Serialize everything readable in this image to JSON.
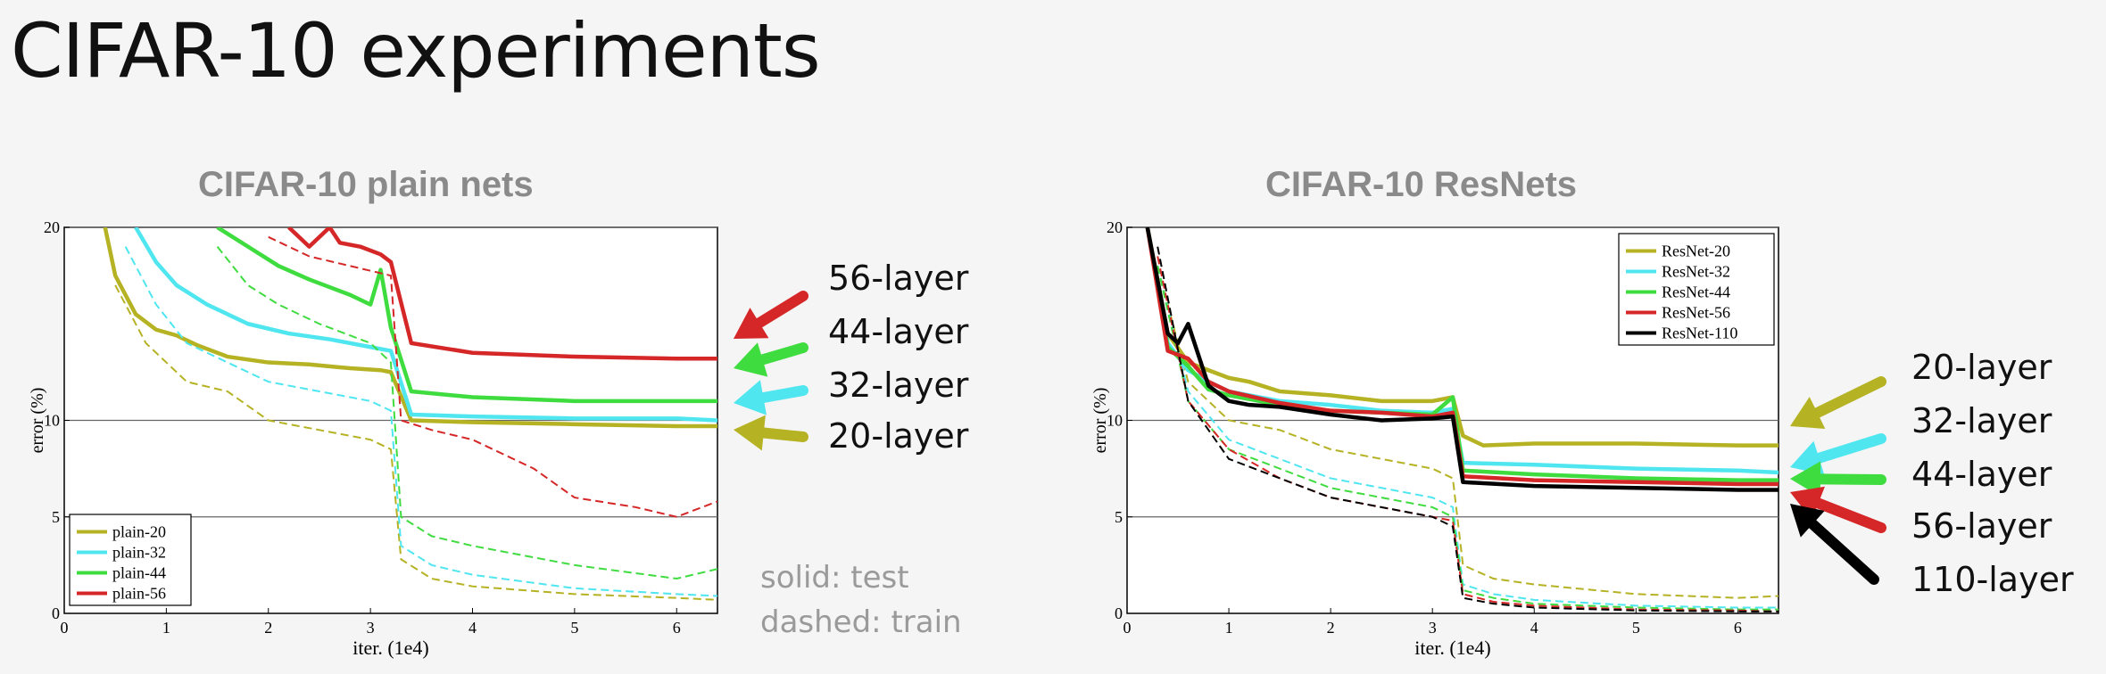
{
  "slide": {
    "title": "CIFAR-10 experiments"
  },
  "notes": {
    "solid": "solid: test",
    "dashed": "dashed: train"
  },
  "charts": {
    "plain": {
      "title": "CIFAR-10 plain nets",
      "callouts": [
        {
          "label": "56-layer",
          "color": "#d62728"
        },
        {
          "label": "44-layer",
          "color": "#3fdc3f"
        },
        {
          "label": "32-layer",
          "color": "#4fe6f0"
        },
        {
          "label": "20-layer",
          "color": "#b5b223"
        }
      ]
    },
    "resnet": {
      "title": "CIFAR-10 ResNets",
      "callouts": [
        {
          "label": "20-layer",
          "color": "#b5b223"
        },
        {
          "label": "32-layer",
          "color": "#4fe6f0"
        },
        {
          "label": "44-layer",
          "color": "#3fdc3f"
        },
        {
          "label": "56-layer",
          "color": "#d62728"
        },
        {
          "label": "110-layer",
          "color": "#000000"
        }
      ]
    }
  },
  "chart_data": [
    {
      "type": "line",
      "title": "CIFAR-10 plain nets",
      "xlabel": "iter. (1e4)",
      "ylabel": "error (%)",
      "xlim": [
        0,
        6.4
      ],
      "ylim": [
        0,
        20
      ],
      "xticks": [
        0,
        1,
        2,
        3,
        4,
        5,
        6
      ],
      "yticks": [
        0,
        5,
        10,
        20
      ],
      "grid_y": [
        5,
        10,
        20
      ],
      "legend": "bottom-left",
      "series": [
        {
          "name": "plain-20",
          "color": "#b5b223",
          "test": {
            "x": [
              0.4,
              0.5,
              0.7,
              0.9,
              1.1,
              1.3,
              1.6,
              2.0,
              2.4,
              2.8,
              3.1,
              3.2,
              3.4,
              4.0,
              5.0,
              6.0,
              6.4
            ],
            "y": [
              20,
              17.5,
              15.5,
              14.7,
              14.4,
              13.9,
              13.3,
              13.0,
              12.9,
              12.7,
              12.6,
              12.5,
              10.0,
              9.9,
              9.8,
              9.7,
              9.7
            ]
          },
          "train": {
            "x": [
              0.5,
              0.8,
              1.2,
              1.6,
              2.0,
              2.5,
              3.0,
              3.2,
              3.3,
              3.6,
              4.0,
              5.0,
              6.0,
              6.4
            ],
            "y": [
              17,
              14,
              12,
              11.5,
              10,
              9.5,
              9,
              8.5,
              2.8,
              1.8,
              1.4,
              1.0,
              0.8,
              0.7
            ]
          }
        },
        {
          "name": "plain-32",
          "color": "#4fe6f0",
          "test": {
            "x": [
              0.7,
              0.9,
              1.1,
              1.4,
              1.8,
              2.2,
              2.6,
              3.0,
              3.2,
              3.4,
              4.0,
              5.0,
              6.0,
              6.4
            ],
            "y": [
              20,
              18.2,
              17.0,
              16.0,
              15.0,
              14.5,
              14.2,
              13.8,
              13.6,
              10.3,
              10.2,
              10.1,
              10.1,
              10.0
            ]
          },
          "train": {
            "x": [
              0.6,
              0.9,
              1.2,
              1.6,
              2.0,
              2.5,
              3.0,
              3.2,
              3.3,
              3.6,
              4.0,
              5.0,
              6.0,
              6.4
            ],
            "y": [
              19,
              16,
              14,
              13,
              12,
              11.5,
              11,
              10.5,
              3.5,
              2.5,
              2.0,
              1.3,
              1.0,
              0.9
            ]
          }
        },
        {
          "name": "plain-44",
          "color": "#3fdc3f",
          "test": {
            "x": [
              1.5,
              1.8,
              2.1,
              2.4,
              2.8,
              3.0,
              3.1,
              3.2,
              3.4,
              4.0,
              5.0,
              6.0,
              6.4
            ],
            "y": [
              20,
              19.0,
              18.0,
              17.3,
              16.5,
              16.0,
              17.8,
              14.8,
              11.5,
              11.2,
              11.0,
              11.0,
              11.0
            ]
          },
          "train": {
            "x": [
              1.5,
              1.8,
              2.1,
              2.5,
              3.0,
              3.2,
              3.3,
              3.6,
              4.0,
              5.0,
              6.0,
              6.4
            ],
            "y": [
              19,
              17,
              16,
              15,
              14,
              13,
              5.0,
              4.0,
              3.5,
              2.5,
              1.8,
              2.3
            ]
          }
        },
        {
          "name": "plain-56",
          "color": "#d62728",
          "test": {
            "x": [
              2.2,
              2.4,
              2.6,
              2.7,
              2.9,
              3.1,
              3.2,
              3.4,
              4.0,
              5.0,
              6.0,
              6.4
            ],
            "y": [
              20,
              19.0,
              20,
              19.2,
              19.0,
              18.6,
              18.2,
              14.0,
              13.5,
              13.3,
              13.2,
              13.2
            ]
          },
          "train": {
            "x": [
              2.0,
              2.4,
              2.8,
              3.2,
              3.3,
              3.6,
              4.0,
              4.6,
              5.0,
              5.6,
              6.0,
              6.4
            ],
            "y": [
              19.5,
              18.5,
              18,
              17.5,
              10.0,
              9.5,
              9.0,
              7.5,
              6.0,
              5.5,
              5.0,
              5.8
            ]
          }
        }
      ]
    },
    {
      "type": "line",
      "title": "CIFAR-10 ResNets",
      "xlabel": "iter. (1e4)",
      "ylabel": "error (%)",
      "xlim": [
        0,
        6.4
      ],
      "ylim": [
        0,
        20
      ],
      "xticks": [
        0,
        1,
        2,
        3,
        4,
        5,
        6
      ],
      "yticks": [
        0,
        5,
        10,
        20
      ],
      "grid_y": [
        5,
        10,
        20
      ],
      "legend": "top-right",
      "series": [
        {
          "name": "ResNet-20",
          "color": "#b5b223",
          "test": {
            "x": [
              0.2,
              0.4,
              0.6,
              0.8,
              1.0,
              1.2,
              1.5,
              2.0,
              2.5,
              3.0,
              3.2,
              3.3,
              3.5,
              4.0,
              5.0,
              6.0,
              6.4
            ],
            "y": [
              20,
              14.5,
              13.0,
              12.6,
              12.2,
              12.0,
              11.5,
              11.3,
              11.0,
              11.0,
              11.2,
              9.2,
              8.7,
              8.8,
              8.8,
              8.7,
              8.7
            ]
          },
          "train": {
            "x": [
              0.3,
              0.6,
              1.0,
              1.5,
              2.0,
              2.5,
              3.0,
              3.2,
              3.3,
              3.6,
              4.0,
              5.0,
              6.0,
              6.4
            ],
            "y": [
              18,
              12,
              10,
              9.5,
              8.5,
              8.0,
              7.5,
              7.0,
              2.5,
              1.8,
              1.5,
              1.0,
              0.8,
              0.9
            ]
          }
        },
        {
          "name": "ResNet-32",
          "color": "#4fe6f0",
          "test": {
            "x": [
              0.2,
              0.4,
              0.6,
              0.8,
              1.0,
              1.5,
              2.0,
              2.5,
              3.0,
              3.2,
              3.3,
              4.0,
              5.0,
              6.0,
              6.4
            ],
            "y": [
              20,
              14.0,
              12.6,
              12.0,
              11.5,
              11.0,
              10.8,
              10.5,
              10.4,
              10.6,
              7.8,
              7.7,
              7.5,
              7.4,
              7.3
            ]
          },
          "train": {
            "x": [
              0.3,
              0.6,
              1.0,
              1.5,
              2.0,
              2.5,
              3.0,
              3.2,
              3.3,
              3.6,
              4.0,
              5.0,
              6.0,
              6.4
            ],
            "y": [
              18,
              11.5,
              9,
              8,
              7,
              6.5,
              6.0,
              5.5,
              1.5,
              1.0,
              0.7,
              0.4,
              0.3,
              0.3
            ]
          }
        },
        {
          "name": "ResNet-44",
          "color": "#3fdc3f",
          "test": {
            "x": [
              0.2,
              0.4,
              0.6,
              0.8,
              1.0,
              1.5,
              2.0,
              2.5,
              3.0,
              3.2,
              3.3,
              4.0,
              5.0,
              6.0,
              6.4
            ],
            "y": [
              20,
              13.8,
              12.8,
              11.6,
              11.3,
              10.8,
              10.5,
              10.4,
              10.3,
              11.2,
              7.4,
              7.2,
              7.0,
              6.9,
              6.9
            ]
          },
          "train": {
            "x": [
              0.3,
              0.6,
              1.0,
              1.5,
              2.0,
              2.5,
              3.0,
              3.2,
              3.3,
              3.6,
              4.0,
              5.0,
              6.0,
              6.4
            ],
            "y": [
              18,
              11,
              8.5,
              7.5,
              6.5,
              6.0,
              5.5,
              5.0,
              1.2,
              0.8,
              0.5,
              0.3,
              0.2,
              0.2
            ]
          }
        },
        {
          "name": "ResNet-56",
          "color": "#d62728",
          "test": {
            "x": [
              0.2,
              0.4,
              0.6,
              0.8,
              1.0,
              1.5,
              2.0,
              2.5,
              3.0,
              3.2,
              3.3,
              4.0,
              5.0,
              6.0,
              6.4
            ],
            "y": [
              20,
              13.6,
              13.2,
              12.0,
              11.5,
              10.9,
              10.5,
              10.4,
              10.2,
              10.4,
              7.1,
              6.9,
              6.8,
              6.7,
              6.7
            ]
          },
          "train": {
            "x": [
              0.3,
              0.6,
              1.0,
              1.5,
              2.0,
              2.5,
              3.0,
              3.2,
              3.3,
              3.6,
              4.0,
              5.0,
              6.0,
              6.4
            ],
            "y": [
              18.5,
              11,
              8.5,
              7,
              6,
              5.5,
              5,
              4.8,
              1.0,
              0.6,
              0.4,
              0.2,
              0.15,
              0.1
            ]
          }
        },
        {
          "name": "ResNet-110",
          "color": "#000000",
          "test": {
            "x": [
              0.2,
              0.4,
              0.5,
              0.6,
              0.8,
              1.0,
              1.2,
              1.5,
              2.0,
              2.5,
              3.0,
              3.2,
              3.3,
              4.0,
              5.0,
              6.0,
              6.4
            ],
            "y": [
              20,
              14.5,
              14.0,
              15.0,
              11.8,
              11.0,
              10.8,
              10.7,
              10.3,
              10.0,
              10.1,
              10.2,
              6.8,
              6.6,
              6.5,
              6.4,
              6.4
            ]
          },
          "train": {
            "x": [
              0.3,
              0.6,
              1.0,
              1.5,
              2.0,
              2.5,
              3.0,
              3.2,
              3.3,
              3.6,
              4.0,
              5.0,
              6.0,
              6.4
            ],
            "y": [
              19,
              11,
              8,
              7,
              6,
              5.5,
              5,
              4.5,
              0.8,
              0.5,
              0.3,
              0.15,
              0.1,
              0.1
            ]
          }
        }
      ]
    }
  ]
}
